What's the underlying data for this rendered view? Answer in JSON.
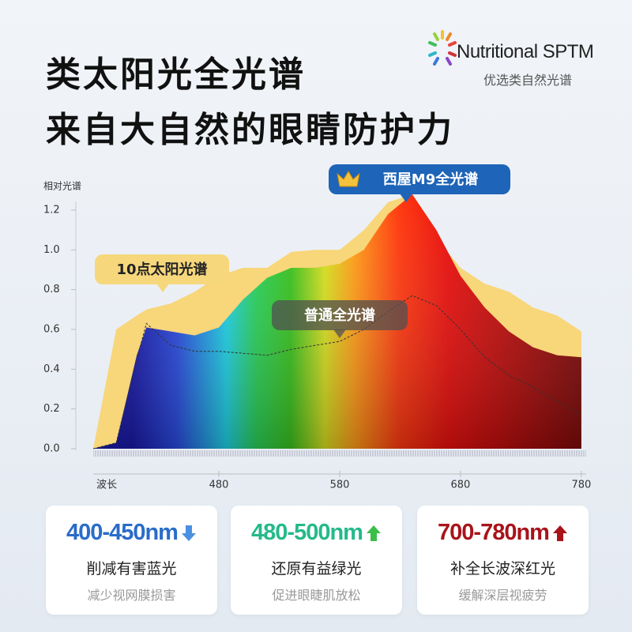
{
  "header": {
    "title_line1": "类太阳光全光谱",
    "title_line2": "来自大自然的眼睛防护力",
    "logo_text": "Nutritional SPTM",
    "logo_subtext": "优选类自然光谱"
  },
  "chart_data": {
    "type": "area",
    "y_label": "相对光谱",
    "x_label": "波长",
    "x": [
      376,
      395,
      412,
      420,
      440,
      460,
      480,
      500,
      520,
      540,
      560,
      580,
      600,
      620,
      640,
      660,
      680,
      700,
      720,
      740,
      760,
      780
    ],
    "xlim": [
      376,
      784
    ],
    "xticks": [
      480,
      580,
      680,
      780
    ],
    "ylim": [
      0,
      1.2
    ],
    "yticks": [
      {
        "value": 0,
        "label": "0.0"
      },
      0.2,
      0.4,
      0.6,
      0.8,
      {
        "value": 1,
        "label": "1.0"
      },
      1.2
    ],
    "series": [
      {
        "name": "10点太阳光谱",
        "color": "#f8d67a",
        "values": [
          0,
          0.6,
          0.67,
          0.7,
          0.73,
          0.79,
          0.87,
          0.91,
          0.91,
          0.99,
          1.0,
          1.0,
          1.1,
          1.24,
          1.28,
          1.06,
          0.91,
          0.83,
          0.79,
          0.71,
          0.67,
          0.59
        ]
      },
      {
        "name": "西屋M9全光谱",
        "color": "rainbow",
        "values": [
          0,
          0.03,
          0.47,
          0.61,
          0.59,
          0.57,
          0.61,
          0.75,
          0.86,
          0.91,
          0.91,
          0.93,
          1.0,
          1.18,
          1.28,
          1.1,
          0.87,
          0.71,
          0.59,
          0.51,
          0.47,
          0.46
        ]
      },
      {
        "name": "普通全光谱",
        "color": "#333333",
        "values": [
          0,
          0.03,
          0.45,
          0.63,
          0.52,
          0.49,
          0.49,
          0.48,
          0.47,
          0.5,
          0.52,
          0.54,
          0.6,
          0.69,
          0.77,
          0.72,
          0.6,
          0.46,
          0.37,
          0.31,
          0.24,
          0.17
        ]
      }
    ]
  },
  "cards": [
    {
      "range": "400-450nm",
      "color": "#2a6cc8",
      "title": "削减有害蓝光",
      "note": "减少视网膜损害"
    },
    {
      "range": "480-500nm",
      "color": "#25b98a",
      "title": "还原有益绿光",
      "note": "促进眼睫肌放松"
    },
    {
      "range": "700-780nm",
      "color": "#a8141a",
      "title": "补全长波深红光",
      "note": "缓解深层视疲劳"
    }
  ]
}
